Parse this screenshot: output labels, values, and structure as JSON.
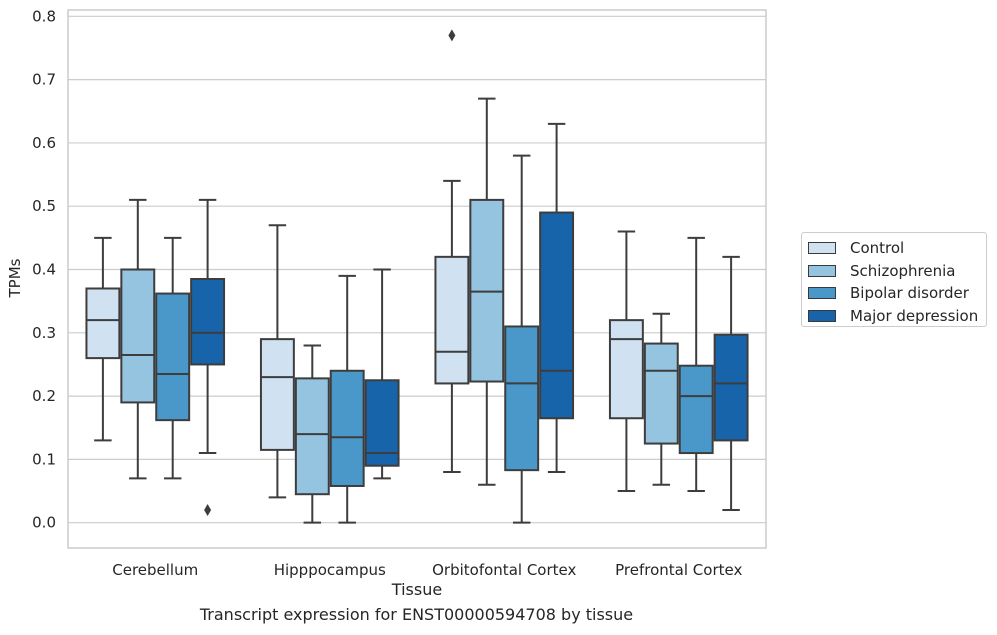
{
  "chart_data": {
    "type": "box",
    "xlabel": "Tissue",
    "ylabel": "TPMs",
    "caption": "Transcript expression for ENST00000594708 by tissue",
    "ylim": [
      -0.04,
      0.81
    ],
    "yticks": [
      "0.0",
      "0.1",
      "0.2",
      "0.3",
      "0.4",
      "0.5",
      "0.6",
      "0.7",
      "0.8"
    ],
    "categories": [
      "Cerebellum",
      "Hipppocampus",
      "Orbitofontal Cortex",
      "Prefrontal Cortex"
    ],
    "grid": "horizontal",
    "legend_position": "right",
    "series": [
      {
        "name": "Control",
        "color": "#d0e1f2",
        "boxes": [
          {
            "whisker_low": 0.13,
            "q1": 0.26,
            "median": 0.32,
            "q3": 0.37,
            "whisker_high": 0.45,
            "outliers": []
          },
          {
            "whisker_low": 0.04,
            "q1": 0.115,
            "median": 0.23,
            "q3": 0.29,
            "whisker_high": 0.47,
            "outliers": []
          },
          {
            "whisker_low": 0.08,
            "q1": 0.22,
            "median": 0.27,
            "q3": 0.42,
            "whisker_high": 0.54,
            "outliers": [
              0.77
            ]
          },
          {
            "whisker_low": 0.05,
            "q1": 0.165,
            "median": 0.29,
            "q3": 0.32,
            "whisker_high": 0.46,
            "outliers": []
          }
        ]
      },
      {
        "name": "Schizophrenia",
        "color": "#94c4df",
        "boxes": [
          {
            "whisker_low": 0.07,
            "q1": 0.19,
            "median": 0.265,
            "q3": 0.4,
            "whisker_high": 0.51,
            "outliers": []
          },
          {
            "whisker_low": 0.0,
            "q1": 0.045,
            "median": 0.14,
            "q3": 0.228,
            "whisker_high": 0.28,
            "outliers": []
          },
          {
            "whisker_low": 0.06,
            "q1": 0.223,
            "median": 0.365,
            "q3": 0.51,
            "whisker_high": 0.67,
            "outliers": []
          },
          {
            "whisker_low": 0.06,
            "q1": 0.125,
            "median": 0.24,
            "q3": 0.283,
            "whisker_high": 0.33,
            "outliers": []
          }
        ]
      },
      {
        "name": "Bipolar disorder",
        "color": "#4a98c9",
        "boxes": [
          {
            "whisker_low": 0.07,
            "q1": 0.162,
            "median": 0.235,
            "q3": 0.362,
            "whisker_high": 0.45,
            "outliers": []
          },
          {
            "whisker_low": 0.0,
            "q1": 0.058,
            "median": 0.135,
            "q3": 0.24,
            "whisker_high": 0.39,
            "outliers": []
          },
          {
            "whisker_low": 0.0,
            "q1": 0.083,
            "median": 0.22,
            "q3": 0.31,
            "whisker_high": 0.58,
            "outliers": []
          },
          {
            "whisker_low": 0.05,
            "q1": 0.11,
            "median": 0.2,
            "q3": 0.248,
            "whisker_high": 0.45,
            "outliers": []
          }
        ]
      },
      {
        "name": "Major depression",
        "color": "#1764ab",
        "boxes": [
          {
            "whisker_low": 0.11,
            "q1": 0.25,
            "median": 0.3,
            "q3": 0.385,
            "whisker_high": 0.51,
            "outliers": [
              0.02
            ]
          },
          {
            "whisker_low": 0.07,
            "q1": 0.09,
            "median": 0.11,
            "q3": 0.225,
            "whisker_high": 0.4,
            "outliers": []
          },
          {
            "whisker_low": 0.08,
            "q1": 0.165,
            "median": 0.24,
            "q3": 0.49,
            "whisker_high": 0.63,
            "outliers": []
          },
          {
            "whisker_low": 0.02,
            "q1": 0.13,
            "median": 0.22,
            "q3": 0.297,
            "whisker_high": 0.42,
            "outliers": []
          }
        ]
      }
    ]
  }
}
